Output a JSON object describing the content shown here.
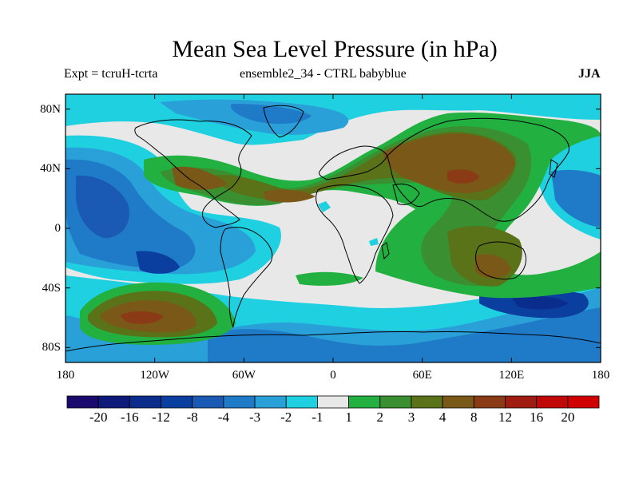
{
  "title": "Mean Sea Level Pressure (in hPa)",
  "expt_label": "Expt = tcruH-tcrta",
  "ensemble_label": "ensemble2_34 - CTRL babyblue",
  "season_label": "JJA",
  "lat_ticks": [
    {
      "value": 80,
      "label": "80N"
    },
    {
      "value": 40,
      "label": "40N"
    },
    {
      "value": 0,
      "label": "0"
    },
    {
      "value": -40,
      "label": "40S"
    },
    {
      "value": -80,
      "label": "80S"
    }
  ],
  "lon_ticks": [
    {
      "value": -180,
      "label": "180"
    },
    {
      "value": -120,
      "label": "120W"
    },
    {
      "value": -60,
      "label": "60W"
    },
    {
      "value": 0,
      "label": "0"
    },
    {
      "value": 60,
      "label": "60E"
    },
    {
      "value": 120,
      "label": "120E"
    },
    {
      "value": 180,
      "label": "180"
    }
  ],
  "colorbar": {
    "levels": [
      "-20",
      "-16",
      "-12",
      "-8",
      "-4",
      "-3",
      "-2",
      "-1",
      "1",
      "2",
      "3",
      "4",
      "8",
      "12",
      "16",
      "20"
    ],
    "colors": [
      "#1a0a6e",
      "#0d1a7a",
      "#0a2c8c",
      "#0a3fa0",
      "#1a5ab4",
      "#1f7ac8",
      "#2aa0d8",
      "#1ed0e0",
      "#e8e8e8",
      "#22b040",
      "#3a9030",
      "#5a7218",
      "#7a5818",
      "#8a3a14",
      "#a01c10",
      "#c00808",
      "#d00000"
    ]
  },
  "colors": {
    "land_outline": "#000000",
    "neutral": "#e8e8e8"
  }
}
